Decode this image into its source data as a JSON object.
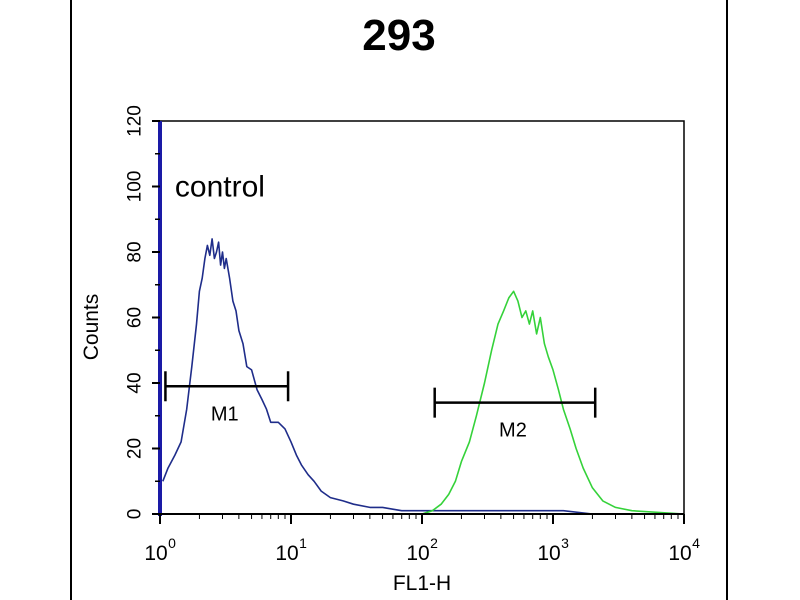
{
  "colors": {
    "background": "#ffffff",
    "axis": "#000000",
    "y_axis_accent": "#1a1aa6",
    "control_series": "#1f2d8a",
    "sample_series": "#35d23a",
    "gate": "#000000"
  },
  "chart_data": {
    "type": "line",
    "title": "293",
    "xlabel": "FL1-H",
    "ylabel": "Counts",
    "xscale": "log",
    "xlim": [
      1,
      10000
    ],
    "ylim": [
      0,
      120
    ],
    "x_ticks": [
      {
        "base": "10",
        "exp": "0",
        "value": 1
      },
      {
        "base": "10",
        "exp": "1",
        "value": 10
      },
      {
        "base": "10",
        "exp": "2",
        "value": 100
      },
      {
        "base": "10",
        "exp": "3",
        "value": 1000
      },
      {
        "base": "10",
        "exp": "4",
        "value": 10000
      }
    ],
    "y_ticks": [
      0,
      20,
      40,
      60,
      80,
      100,
      120
    ],
    "grid": false,
    "annotations": [
      {
        "text": "control",
        "x": 1.3,
        "y": 97
      }
    ],
    "gates": [
      {
        "label": "M1",
        "x_start": 1.1,
        "x_end": 9.5,
        "y": 39
      },
      {
        "label": "M2",
        "x_start": 125,
        "x_end": 2100,
        "y": 34
      }
    ],
    "series": [
      {
        "color": "#1f2d8a",
        "x": [
          1.05,
          1.15,
          1.3,
          1.45,
          1.6,
          1.75,
          1.9,
          2.0,
          2.1,
          2.2,
          2.3,
          2.4,
          2.5,
          2.6,
          2.7,
          2.8,
          2.9,
          3.0,
          3.1,
          3.2,
          3.4,
          3.6,
          3.8,
          4.0,
          4.3,
          4.6,
          5.0,
          5.5,
          6.0,
          6.5,
          7.0,
          8.0,
          9.0,
          10.0,
          11.0,
          12.0,
          13.5,
          15.0,
          17.0,
          20.0,
          25.0,
          30.0,
          40.0,
          50.0,
          70.0,
          100.0,
          150.0,
          200.0,
          300.0,
          500.0,
          800.0,
          1200.0,
          2000.0,
          3000.0,
          5000.0,
          10000.0
        ],
        "y": [
          10,
          14,
          18,
          22,
          32,
          45,
          58,
          68,
          72,
          78,
          82,
          79,
          84,
          78,
          80,
          83,
          76,
          80,
          75,
          78,
          72,
          65,
          62,
          56,
          52,
          45,
          44,
          38,
          35,
          32,
          28,
          28,
          26,
          22,
          18,
          15,
          12,
          10,
          7,
          5,
          4,
          3,
          2,
          2,
          1,
          1,
          1,
          1,
          1,
          1,
          1,
          1,
          0,
          0,
          0,
          0
        ]
      },
      {
        "color": "#35d23a",
        "x": [
          1.0,
          10.0,
          100.0,
          120.0,
          140.0,
          160.0,
          180.0,
          200.0,
          230.0,
          260.0,
          300.0,
          340.0,
          380.0,
          420.0,
          460.0,
          500.0,
          540.0,
          580.0,
          620.0,
          660.0,
          700.0,
          750.0,
          800.0,
          860.0,
          920.0,
          1000.0,
          1100.0,
          1200.0,
          1350.0,
          1500.0,
          1700.0,
          2000.0,
          2400.0,
          3000.0,
          4000.0,
          10000.0
        ],
        "y": [
          0,
          0,
          0,
          1,
          3,
          6,
          10,
          16,
          22,
          30,
          40,
          50,
          58,
          62,
          66,
          68,
          65,
          60,
          62,
          58,
          62,
          55,
          60,
          52,
          48,
          44,
          38,
          32,
          26,
          20,
          14,
          8,
          4,
          2,
          1,
          0
        ]
      }
    ]
  }
}
